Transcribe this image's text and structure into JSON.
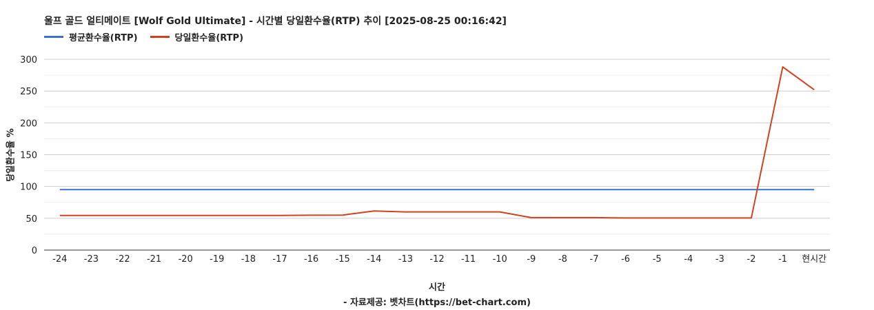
{
  "title": "울프 골드 얼티메이트 [Wolf Gold Ultimate] - 시간별 당일환수율(RTP) 추이 [2025-08-25 00:16:42]",
  "source_note": "- 자료제공: 벳차트(https://bet-chart.com)",
  "colors": {
    "avg": "#3f6fce",
    "daily": "#d2411e",
    "grid": "#cccccc",
    "minor_grid": "#ececec",
    "axis": "#333333"
  },
  "chart_data": {
    "type": "line",
    "title": "울프 골드 얼티메이트 [Wolf Gold Ultimate] - 시간별 당일환수율(RTP) 추이 [2025-08-25 00:16:42]",
    "xlabel": "시간",
    "ylabel": "당일환수율 %",
    "ylim": [
      0,
      300
    ],
    "yticks": [
      "0",
      "50",
      "100",
      "150",
      "200",
      "250",
      "300"
    ],
    "grid": true,
    "legend_position": "top-left",
    "categories": [
      "-24",
      "-23",
      "-22",
      "-21",
      "-20",
      "-19",
      "-18",
      "-17",
      "-16",
      "-15",
      "-14",
      "-13",
      "-12",
      "-11",
      "-10",
      "-9",
      "-8",
      "-7",
      "-6",
      "-5",
      "-4",
      "-3",
      "-2",
      "-1",
      "현시간"
    ],
    "series": [
      {
        "name": "평균환수율(RTP)",
        "color": "#3f6fce",
        "values": [
          95,
          95,
          95,
          95,
          95,
          95,
          95,
          95,
          95,
          95,
          95,
          95,
          95,
          95,
          95,
          95,
          95,
          95,
          95,
          95,
          95,
          95,
          95,
          95,
          95
        ]
      },
      {
        "name": "당일환수율(RTP)",
        "color": "#d2411e",
        "values": [
          54.5,
          54.5,
          54.5,
          54.5,
          54.5,
          54.5,
          54.5,
          54.5,
          54.8,
          55,
          61.5,
          60,
          60,
          60,
          60,
          51,
          51,
          51,
          50.5,
          50.5,
          50.5,
          50.5,
          50.5,
          288,
          252
        ]
      }
    ]
  }
}
